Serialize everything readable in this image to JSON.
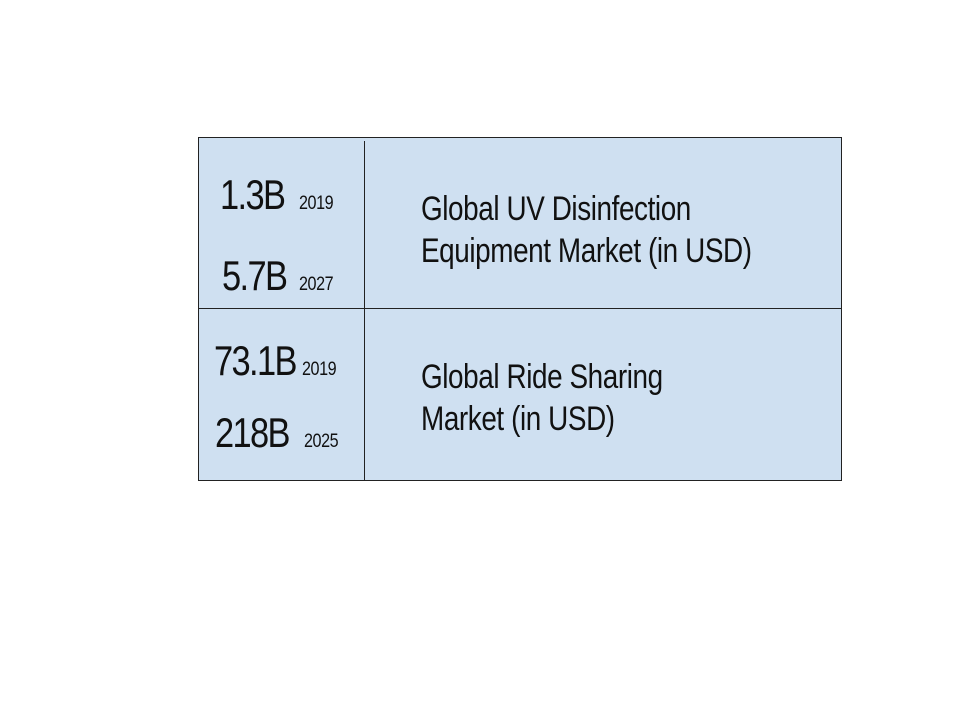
{
  "rows": [
    {
      "value_start": "1.3B",
      "year_start": "2019",
      "value_end": "5.7B",
      "year_end": "2027",
      "label_line1": "Global UV Disinfection",
      "label_line2": "Equipment Market (in USD)"
    },
    {
      "value_start": "73.1B",
      "year_start": "2019",
      "value_end": "218B",
      "year_end": "2025",
      "label_line1": "Global Ride Sharing",
      "label_line2": "Market (in USD)"
    }
  ],
  "colors": {
    "panel_background": "#cfe0f1",
    "border": "#222222",
    "text": "#111111"
  }
}
